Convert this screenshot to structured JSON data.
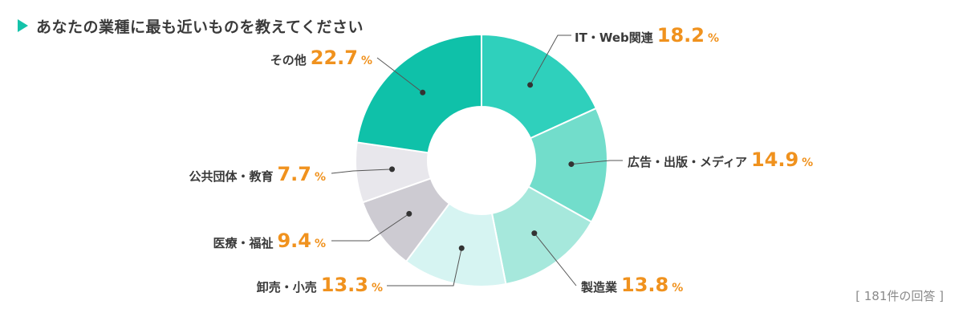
{
  "heading": {
    "title": "あなたの業種に最も近いものを教えてください"
  },
  "note": "[ 181件の回答 ]",
  "colors": {
    "accent": "#14c3aa",
    "value": "#f0921e",
    "text": "#3a3a3a",
    "leader": "#555555"
  },
  "chart_data": {
    "type": "pie",
    "variant": "donut",
    "title": "あなたの業種に最も近いものを教えてください",
    "unit": "%",
    "total_responses_label": "[ 181件の回答 ]",
    "slices": [
      {
        "label": "IT・Web関連",
        "value": 18.2,
        "value_text": "18.2",
        "color": "#2fd0bc"
      },
      {
        "label": "広告・出版・メディア",
        "value": 14.9,
        "value_text": "14.9",
        "color": "#72ddcb"
      },
      {
        "label": "製造業",
        "value": 13.8,
        "value_text": "13.8",
        "color": "#a6e8dc"
      },
      {
        "label": "卸売・小売",
        "value": 13.3,
        "value_text": "13.3",
        "color": "#d6f4f2"
      },
      {
        "label": "医療・福祉",
        "value": 9.4,
        "value_text": "9.4",
        "color": "#cdcbd2"
      },
      {
        "label": "公共団体・教育",
        "value": 7.7,
        "value_text": "7.7",
        "color": "#e8e7ec"
      },
      {
        "label": "その他",
        "value": 22.7,
        "value_text": "22.7",
        "color": "#0fc1a9"
      }
    ]
  }
}
